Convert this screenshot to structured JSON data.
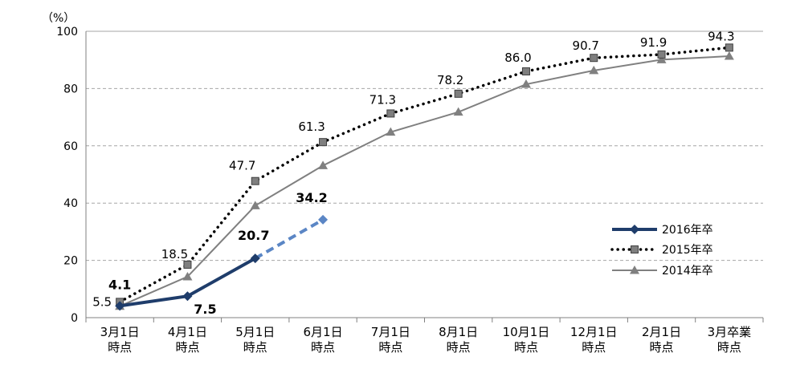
{
  "chart_data": {
    "type": "line",
    "ylabel": "（%）",
    "ylim": [
      0,
      100
    ],
    "yticks": [
      "0",
      "20",
      "40",
      "60",
      "80",
      "100"
    ],
    "categories": [
      [
        "3月1日",
        "時点"
      ],
      [
        "4月1日",
        "時点"
      ],
      [
        "5月1日",
        "時点"
      ],
      [
        "6月1日",
        "時点"
      ],
      [
        "7月1日",
        "時点"
      ],
      [
        "8月1日",
        "時点"
      ],
      [
        "10月1日",
        "時点"
      ],
      [
        "12月1日",
        "時点"
      ],
      [
        "2月1日",
        "時点"
      ],
      [
        "3月卒業",
        "時点"
      ]
    ],
    "grid": true,
    "legend_position": "right",
    "series": [
      {
        "name": "2016年卒",
        "color": "#1f3d6b",
        "marker": "diamond",
        "values": [
          4.1,
          7.5,
          20.7,
          34.2,
          null,
          null,
          null,
          null,
          null,
          null
        ],
        "labels": [
          "4.1",
          "7.5",
          "20.7",
          "34.2"
        ],
        "dashed_from_index": 2,
        "dashed_color": "#5b86c5"
      },
      {
        "name": "2015年卒",
        "color": "#000000",
        "marker": "square",
        "values": [
          5.5,
          18.5,
          47.7,
          61.3,
          71.3,
          78.2,
          86.0,
          90.7,
          91.9,
          94.3
        ],
        "labels": [
          "5.5",
          "18.5",
          "47.7",
          "61.3",
          "71.3",
          "78.2",
          "86.0",
          "90.7",
          "91.9",
          "94.3"
        ]
      },
      {
        "name": "2014年卒",
        "color": "#808080",
        "marker": "triangle",
        "values": [
          4.0,
          14.3,
          39.1,
          53.1,
          64.8,
          71.8,
          81.5,
          86.3,
          90.1,
          91.3
        ],
        "labels": []
      }
    ]
  }
}
